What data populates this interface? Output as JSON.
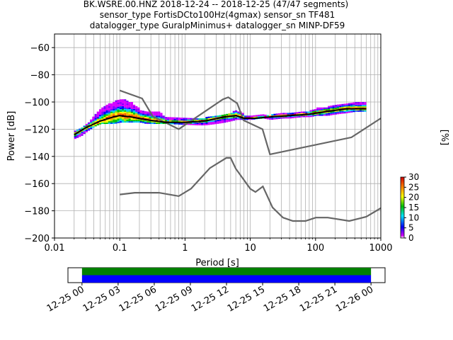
{
  "figure": {
    "title_lines": [
      "BK.WSRE.00.HNZ   2018-12-24 -- 2018-12-25  (47/47 segments)",
      "sensor_type FortisDCto100Hz(4gmax) sensor_sn TF481",
      "datalogger_type GuralpMinimus+ datalogger_sn MINP-DF59"
    ]
  },
  "chart_data": [
    {
      "type": "heatmap",
      "subtype": "probabilistic power spectral density",
      "xlabel": "Period [s]",
      "ylabel": "Power [dB]",
      "xscale": "log",
      "xlim": [
        0.01,
        1000
      ],
      "ylim": [
        -200,
        -50
      ],
      "x_tick_labels": [
        "0.01",
        "0.1",
        "1",
        "10",
        "100",
        "1000"
      ],
      "x_ticks": [
        0.01,
        0.1,
        1,
        10,
        100,
        1000
      ],
      "y_tick_labels": [
        "−200",
        "−180",
        "−160",
        "−140",
        "−120",
        "−100",
        "−80",
        "−60"
      ],
      "y_ticks": [
        -200,
        -180,
        -160,
        -140,
        -120,
        -100,
        -80,
        -60
      ],
      "grid": true,
      "colorbar": {
        "label": "[%]",
        "range": [
          0,
          30
        ],
        "tick_labels": [
          "0",
          "5",
          "10",
          "15",
          "20",
          "25",
          "30"
        ],
        "ticks": [
          0,
          5,
          10,
          15,
          20,
          25,
          30
        ]
      },
      "series": [
        {
          "role": "mean",
          "color": "#000000",
          "x": [
            0.02,
            0.03,
            0.05,
            0.08,
            0.1,
            0.15,
            0.25,
            0.5,
            1,
            2,
            4,
            6,
            8,
            12,
            20,
            40,
            80,
            150,
            300,
            600
          ],
          "y": [
            -124,
            -119,
            -114,
            -111,
            -110,
            -111,
            -113,
            -115,
            -115,
            -114,
            -111,
            -110,
            -112,
            -112,
            -111,
            -110,
            -109,
            -107,
            -105,
            -105
          ]
        },
        {
          "role": "noise_model",
          "color": "#666666",
          "x": [
            0.1,
            0.22,
            0.32,
            0.8,
            3.8,
            4.6,
            6.3,
            7.9,
            15.4,
            20,
            354.8,
            1000
          ],
          "y": [
            -91.5,
            -97.4,
            -110.5,
            -120,
            -98,
            -96.5,
            -101,
            -113.5,
            -120,
            -138.5,
            -126,
            -112
          ]
        },
        {
          "role": "noise_model",
          "color": "#666666",
          "x": [
            0.1,
            0.17,
            0.4,
            0.8,
            1.24,
            2.4,
            4.3,
            5,
            6,
            10,
            12,
            15.6,
            21.9,
            31.6,
            45,
            70,
            101,
            154,
            328,
            600,
            1000
          ],
          "y": [
            -168,
            -166.7,
            -166.7,
            -169.2,
            -163.7,
            -148.6,
            -141.1,
            -141.1,
            -149,
            -163.8,
            -166.2,
            -162.1,
            -177.5,
            -185,
            -187.5,
            -187.5,
            -185,
            -185,
            -187.5,
            -184.4,
            -178
          ]
        },
        {
          "role": "psd_distribution",
          "x": [
            0.02,
            0.025,
            0.03,
            0.04,
            0.05,
            0.06,
            0.08,
            0.1,
            0.12,
            0.15,
            0.2,
            0.25,
            0.3,
            0.4,
            0.5,
            1.5,
            2,
            3,
            4,
            5,
            6,
            7,
            8,
            10,
            15,
            20,
            30,
            40,
            60,
            80,
            100,
            150,
            200,
            300,
            400,
            600
          ],
          "y_upper": [
            -122,
            -120,
            -117,
            -110,
            -105,
            -103,
            -100,
            -99,
            -99,
            -101,
            -106,
            -108,
            -108,
            -108,
            -112,
            -113,
            -112,
            -111,
            -110,
            -108,
            -107,
            -108,
            -110,
            -111,
            -110,
            -110,
            -109,
            -109,
            -108,
            -107,
            -105,
            -104,
            -103,
            -102,
            -101,
            -100
          ],
          "y_lower": [
            -127,
            -125,
            -122,
            -118,
            -116,
            -116,
            -116,
            -115,
            -115,
            -115,
            -115,
            -116,
            -116,
            -116,
            -116,
            -117,
            -117,
            -116,
            -115,
            -114,
            -113,
            -113,
            -113,
            -113,
            -112,
            -113,
            -112,
            -112,
            -111,
            -111,
            -110,
            -110,
            -109,
            -108,
            -107,
            -107
          ]
        }
      ]
    },
    {
      "type": "timeline",
      "x_tick_labels": [
        "12-25 00",
        "12-25 03",
        "12-25 06",
        "12-25 09",
        "12-25 12",
        "12-25 15",
        "12-25 18",
        "12-25 21",
        "12-26 00"
      ],
      "x_ticks": [
        "2018-12-25T00:00",
        "2018-12-25T03:00",
        "2018-12-25T06:00",
        "2018-12-25T09:00",
        "2018-12-25T12:00",
        "2018-12-25T15:00",
        "2018-12-25T18:00",
        "2018-12-25T21:00",
        "2018-12-26T00:00"
      ],
      "xlim": [
        "2018-12-24T22:50",
        "2018-12-26T01:10"
      ],
      "bars": [
        {
          "color": "#008000",
          "start": "2018-12-25T00:00",
          "end": "2018-12-26T00:00"
        },
        {
          "color": "#0000ff",
          "start": "2018-12-25T00:00",
          "end": "2018-12-26T00:00"
        }
      ]
    }
  ]
}
